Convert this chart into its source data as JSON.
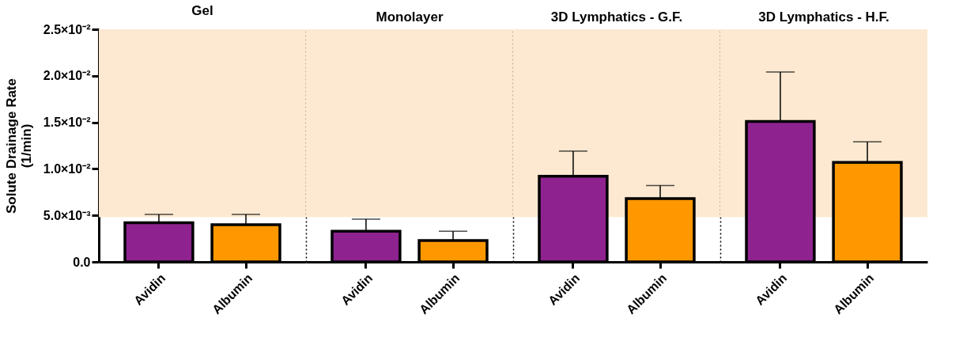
{
  "chart_data": [
    {
      "type": "bar",
      "title": "Gel",
      "ylabel": [
        "Solute Drainage Rate",
        "(1/min)"
      ],
      "categories": [
        "Avidin",
        "Albumin"
      ],
      "values": [
        0.0042,
        0.004
      ],
      "colors": [
        "#8e2390",
        "#ff9800"
      ],
      "errors": [
        [
          0.0042,
          0.0051
        ],
        [
          0.004,
          0.0051
        ]
      ],
      "ylim": [
        0,
        0.025
      ],
      "yticks": [
        {
          "value": 0,
          "label": "0.0"
        },
        {
          "value": 0.005,
          "label": "5.0×10⁻³"
        },
        {
          "value": 0.01,
          "label": "1.0×10⁻²"
        },
        {
          "value": 0.015,
          "label": "1.5×10⁻²"
        },
        {
          "value": 0.02,
          "label": "2.0×10⁻²"
        },
        {
          "value": 0.025,
          "label": "2.5×10⁻²"
        }
      ],
      "bands": [
        {
          "axis": "y",
          "from": 0.0048,
          "to": 0.025,
          "color": "#fde9d1"
        }
      ]
    },
    {
      "type": "bar",
      "title": "Monolayer",
      "categories": [
        "Avidin",
        "Albumin"
      ],
      "values": [
        0.0033,
        0.0023
      ],
      "colors": [
        "#8e2390",
        "#ff9800"
      ],
      "errors": [
        [
          0.0033,
          0.0046
        ],
        [
          0.0023,
          0.0033
        ]
      ],
      "ylim": [
        0,
        0.025
      ],
      "tick_labels": "x",
      "bands": [
        {
          "axis": "y",
          "from": 0.0048,
          "to": 0.025,
          "color": "#fde9d1"
        }
      ]
    },
    {
      "type": "bar",
      "title": "3D Lymphatics - G.F.",
      "categories": [
        "Avidin",
        "Albumin"
      ],
      "values": [
        0.0092,
        0.0068
      ],
      "colors": [
        "#8e2390",
        "#ff9800"
      ],
      "errors": [
        [
          0.0092,
          0.0119
        ],
        [
          0.0068,
          0.0082
        ]
      ],
      "ylim": [
        0,
        0.025
      ],
      "tick_labels": "x",
      "bands": [
        {
          "axis": "y",
          "from": 0.0048,
          "to": 0.025,
          "color": "#fde9d1"
        }
      ]
    },
    {
      "type": "bar",
      "title": "3D Lymphatics - H.F.",
      "categories": [
        "Avidin",
        "Albumin"
      ],
      "values": [
        0.0151,
        0.0107
      ],
      "colors": [
        "#8e2390",
        "#ff9800"
      ],
      "errors": [
        [
          0.0151,
          0.0204
        ],
        [
          0.0107,
          0.0129
        ]
      ],
      "ylim": [
        0,
        0.025
      ],
      "tick_labels": "x",
      "bands": [
        {
          "axis": "y",
          "from": 0.0048,
          "to": 0.025,
          "color": "#fde9d1"
        }
      ]
    }
  ]
}
